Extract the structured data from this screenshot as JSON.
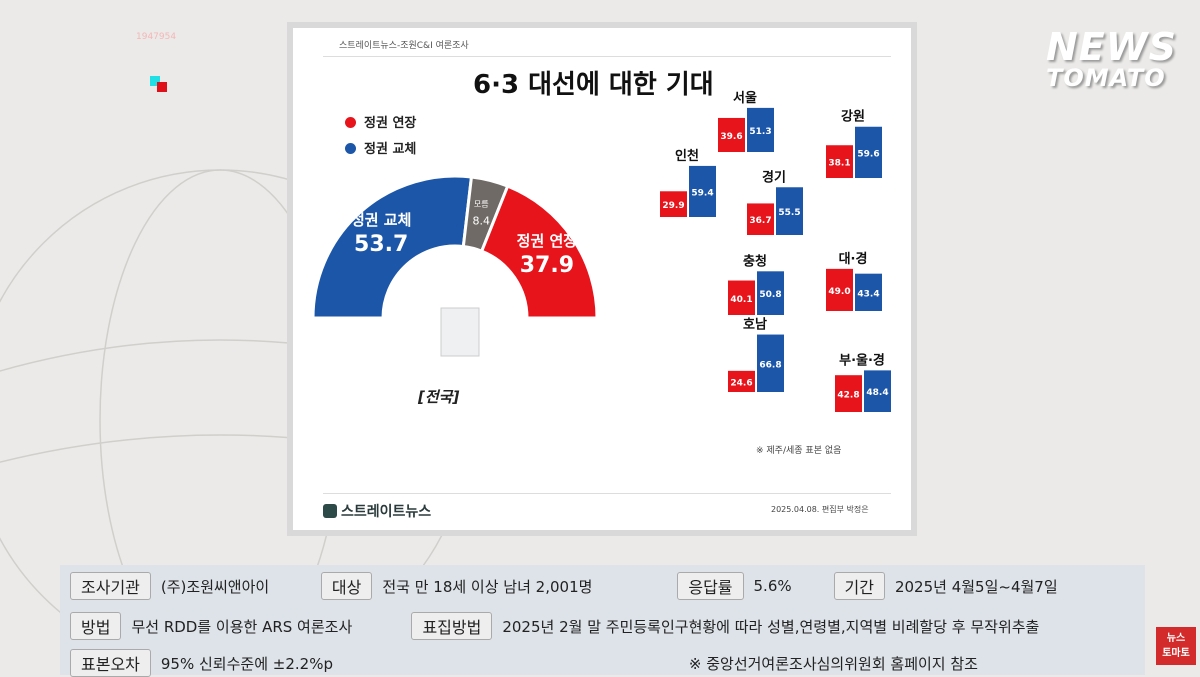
{
  "ticker": "1947954",
  "logo": {
    "line1": "NEWS",
    "line2": "TOMATO"
  },
  "badge": {
    "line1": "뉴스",
    "line2": "토마토"
  },
  "infographic": {
    "source": "스트레이트뉴스-조원C&I 여론조사",
    "title": "6·3 대선에 대한 기대",
    "national_label": "[전국]",
    "note": "※ 제주/세종 표본 없음",
    "date_credit": "2025.04.08. 편집부 박정은",
    "brand": "스트레이트뉴스"
  },
  "colors": {
    "extend": "#e8141c",
    "replace": "#1c56a8",
    "unsure": "#6f6a66"
  },
  "chart_data": [
    {
      "type": "pie",
      "subtype": "semicircle-donut",
      "label": "[전국]",
      "legend": [
        "정권 연장",
        "정권 교체"
      ],
      "slices": [
        {
          "name": "정권 교체",
          "value": 53.7
        },
        {
          "name": "모름",
          "value": 8.4
        },
        {
          "name": "정권 연장",
          "value": 37.9
        }
      ]
    },
    {
      "type": "bar",
      "series": [
        {
          "name": "정권 연장"
        },
        {
          "name": "정권 교체"
        }
      ],
      "regions": [
        {
          "name": "서울",
          "extend": 39.6,
          "replace": 51.3
        },
        {
          "name": "강원",
          "extend": 38.1,
          "replace": 59.6
        },
        {
          "name": "인천",
          "extend": 29.9,
          "replace": 59.4
        },
        {
          "name": "경기",
          "extend": 36.7,
          "replace": 55.5
        },
        {
          "name": "충청",
          "extend": 40.1,
          "replace": 50.8
        },
        {
          "name": "대·경",
          "extend": 49.0,
          "replace": 43.4
        },
        {
          "name": "호남",
          "extend": 24.6,
          "replace": 66.8
        },
        {
          "name": "부·울·경",
          "extend": 42.8,
          "replace": 48.4
        }
      ]
    }
  ],
  "survey": {
    "org_label": "조사기관",
    "org": "(주)조원씨앤아이",
    "target_label": "대상",
    "target": "전국 만 18세 이상 남녀 2,001명",
    "rate_label": "응답률",
    "rate": "5.6%",
    "period_label": "기간",
    "period": "2025년 4월5일~4월7일",
    "method_label": "방법",
    "method": "무선 RDD를 이용한 ARS 여론조사",
    "sampling_label": "표집방법",
    "sampling": "2025년 2월 말 주민등록인구현황에 따라 성별,연령별,지역별 비례할당 후 무작위추출",
    "error_label": "표본오차",
    "error": "95% 신뢰수준에 ±2.2%p",
    "ref": "※ 중앙선거여론조사심의위원회 홈페이지 참조"
  }
}
